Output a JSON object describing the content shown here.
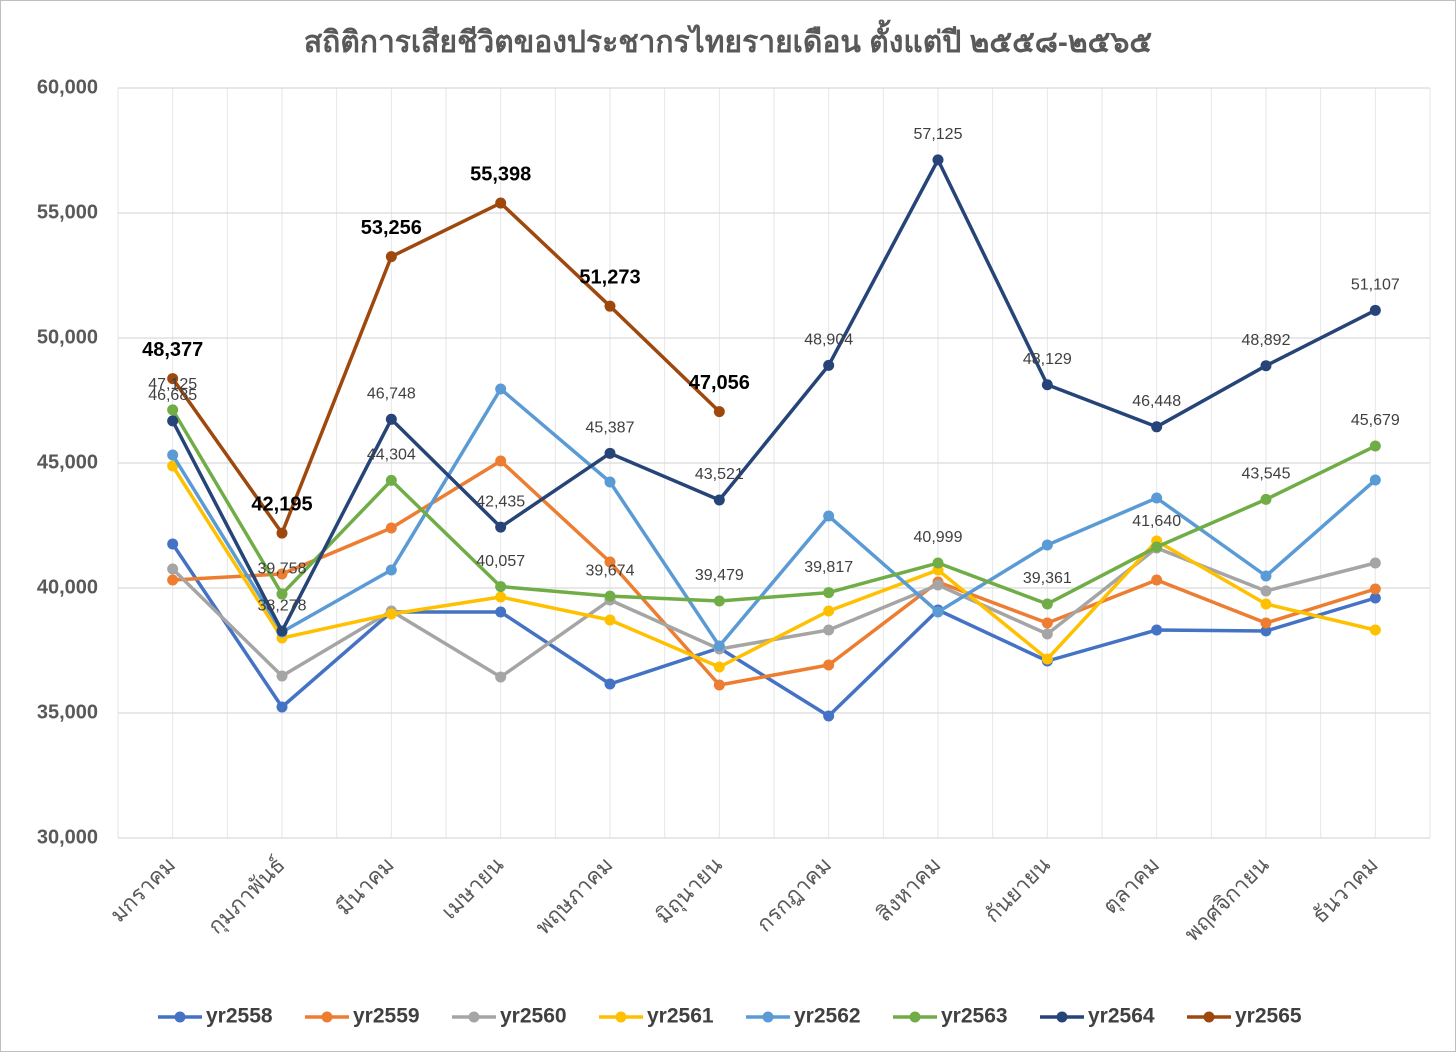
{
  "chart_data": {
    "type": "line",
    "title": "สถิติการเสียชีวิตของประชากรไทยรายเดือน ตั้งแต่ปี ๒๕๕๘-๒๕๖๕",
    "categories": [
      "มกราคม",
      "กุมภาพันธ์",
      "มีนาคม",
      "เมษายน",
      "พฤษภาคม",
      "มิถุนายน",
      "กรกฎาคม",
      "สิงหาคม",
      "กันยายน",
      "ตุลาคม",
      "พฤศจิกายน",
      "ธันวาคม"
    ],
    "ylim": [
      30000,
      60000
    ],
    "yticks": [
      {
        "value": 30000,
        "label": "30,000"
      },
      {
        "value": 35000,
        "label": "35,000"
      },
      {
        "value": 40000,
        "label": "40,000"
      },
      {
        "value": 45000,
        "label": "45,000"
      },
      {
        "value": 50000,
        "label": "50,000"
      },
      {
        "value": 55000,
        "label": "55,000"
      },
      {
        "value": 60000,
        "label": "60,000"
      }
    ],
    "grid": true,
    "legend": "bottom",
    "series": [
      {
        "name": "yr2558",
        "color": "#4472c4",
        "values": [
          41760,
          35240,
          39040,
          39040,
          36160,
          37600,
          34880,
          39120,
          37080,
          38320,
          38280,
          39600
        ]
      },
      {
        "name": "yr2559",
        "color": "#ed7d31",
        "values": [
          40320,
          40560,
          42400,
          45080,
          41040,
          36120,
          36920,
          40240,
          38600,
          40320,
          38600,
          39960
        ]
      },
      {
        "name": "yr2560",
        "color": "#a5a5a5",
        "values": [
          40760,
          36480,
          39080,
          36440,
          39520,
          37560,
          38320,
          40120,
          38160,
          41600,
          39880,
          41000
        ]
      },
      {
        "name": "yr2561",
        "color": "#ffc000",
        "values": [
          44880,
          38000,
          38960,
          39640,
          38720,
          36840,
          39080,
          40720,
          37160,
          41880,
          39360,
          38320
        ]
      },
      {
        "name": "yr2562",
        "color": "#5b9bd5",
        "values": [
          45320,
          38240,
          40720,
          47960,
          44240,
          37680,
          42880,
          39040,
          41720,
          43600,
          40480,
          44320
        ]
      },
      {
        "name": "yr2563",
        "color": "#70ad47",
        "values": [
          47125,
          39758,
          44304,
          40057,
          39674,
          39479,
          39817,
          40999,
          39361,
          41640,
          43545,
          45679
        ],
        "value_labels": [
          "47,125",
          "39,758",
          "44,304",
          "40,057",
          "39,674",
          "39,479",
          "39,817",
          "40,999",
          "39,361",
          "41,640",
          "43,545",
          "45,679"
        ]
      },
      {
        "name": "yr2564",
        "color": "#264478",
        "values": [
          46685,
          38278,
          46748,
          42435,
          45387,
          43521,
          48904,
          57125,
          48129,
          46448,
          48892,
          51107
        ],
        "value_labels": [
          "46,685",
          "38,278",
          "46,748",
          "42,435",
          "45,387",
          "43,521",
          "48,904",
          "57,125",
          "48,129",
          "46,448",
          "48,892",
          "51,107"
        ]
      },
      {
        "name": "yr2565",
        "color": "#9e480e",
        "values": [
          48377,
          42195,
          53256,
          55398,
          51273,
          47056,
          null,
          null,
          null,
          null,
          null,
          null
        ],
        "value_labels": [
          "48,377",
          "42,195",
          "53,256",
          "55,398",
          "51,273",
          "47,056",
          null,
          null,
          null,
          null,
          null,
          null
        ]
      }
    ]
  }
}
